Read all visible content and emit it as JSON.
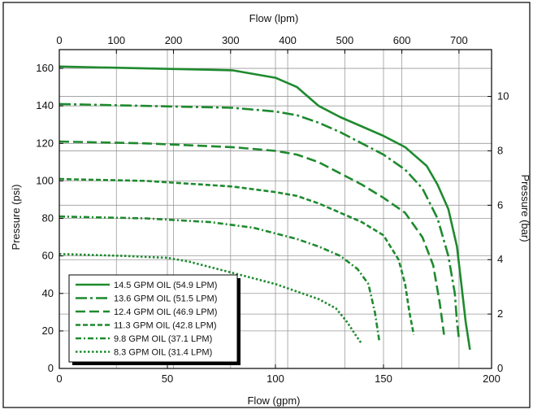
{
  "chart_data": {
    "type": "line",
    "title": "",
    "xlabel_bottom": "Flow (gpm)",
    "xlabel_top": "Flow (lpm)",
    "ylabel_left": "Pressure (psi)",
    "ylabel_right": "Pressure (bar)",
    "xlim": [
      0,
      200
    ],
    "ylim": [
      0,
      170
    ],
    "x_ticks": [
      "0",
      "50",
      "100",
      "150",
      "200"
    ],
    "y_ticks": [
      "0",
      "20",
      "40",
      "60",
      "80",
      "100",
      "120",
      "140",
      "160"
    ],
    "top_ticks": [
      "0",
      "100",
      "200",
      "300",
      "400",
      "500",
      "600",
      "700"
    ],
    "right_ticks": [
      "0",
      "2",
      "4",
      "6",
      "8",
      "10"
    ],
    "grid": true,
    "legend_position": "bottom-left",
    "line_color": "#1e8a2e",
    "series": [
      {
        "name": "14.5 GPM OIL (54.9 LPM)",
        "style": "solid",
        "points": [
          [
            0,
            161
          ],
          [
            40,
            160
          ],
          [
            80,
            159
          ],
          [
            100,
            155
          ],
          [
            110,
            150
          ],
          [
            120,
            140
          ],
          [
            130,
            134
          ],
          [
            140,
            129
          ],
          [
            150,
            124
          ],
          [
            160,
            118
          ],
          [
            170,
            108
          ],
          [
            175,
            98
          ],
          [
            180,
            85
          ],
          [
            184,
            65
          ],
          [
            186,
            45
          ],
          [
            188,
            25
          ],
          [
            190,
            10
          ]
        ]
      },
      {
        "name": "13.6 GPM OIL (51.5 LPM)",
        "style": "dashdot",
        "points": [
          [
            0,
            141
          ],
          [
            40,
            140
          ],
          [
            80,
            139
          ],
          [
            100,
            137
          ],
          [
            110,
            135
          ],
          [
            120,
            131
          ],
          [
            130,
            126
          ],
          [
            140,
            120
          ],
          [
            150,
            114
          ],
          [
            160,
            106
          ],
          [
            168,
            96
          ],
          [
            175,
            80
          ],
          [
            180,
            60
          ],
          [
            183,
            40
          ],
          [
            184,
            25
          ],
          [
            185,
            15
          ]
        ]
      },
      {
        "name": "12.4 GPM OIL (46.9 LPM)",
        "style": "dashed",
        "points": [
          [
            0,
            121
          ],
          [
            40,
            120
          ],
          [
            80,
            118
          ],
          [
            100,
            116
          ],
          [
            110,
            114
          ],
          [
            120,
            110
          ],
          [
            130,
            104
          ],
          [
            140,
            98
          ],
          [
            150,
            91
          ],
          [
            160,
            83
          ],
          [
            168,
            70
          ],
          [
            173,
            55
          ],
          [
            176,
            35
          ],
          [
            178,
            18
          ]
        ]
      },
      {
        "name": "11.3 GPM OIL (42.8 LPM)",
        "style": "shortdash",
        "points": [
          [
            0,
            101
          ],
          [
            40,
            100
          ],
          [
            80,
            97
          ],
          [
            100,
            94
          ],
          [
            110,
            92
          ],
          [
            120,
            88
          ],
          [
            130,
            83
          ],
          [
            140,
            78
          ],
          [
            150,
            71
          ],
          [
            157,
            58
          ],
          [
            160,
            45
          ],
          [
            162,
            30
          ],
          [
            164,
            18
          ]
        ]
      },
      {
        "name": "9.8 GPM OIL (37.1 LPM)",
        "style": "dashdotfine",
        "points": [
          [
            0,
            81
          ],
          [
            40,
            80
          ],
          [
            70,
            78
          ],
          [
            90,
            75
          ],
          [
            100,
            72
          ],
          [
            110,
            69
          ],
          [
            120,
            65
          ],
          [
            130,
            60
          ],
          [
            138,
            53
          ],
          [
            143,
            45
          ],
          [
            146,
            30
          ],
          [
            148,
            15
          ]
        ]
      },
      {
        "name": "8.3 GPM OIL (31.4 LPM)",
        "style": "dotted",
        "points": [
          [
            0,
            61
          ],
          [
            30,
            60
          ],
          [
            50,
            59
          ],
          [
            60,
            57
          ],
          [
            70,
            54
          ],
          [
            80,
            51
          ],
          [
            90,
            48
          ],
          [
            100,
            45
          ],
          [
            110,
            41
          ],
          [
            120,
            37
          ],
          [
            128,
            32
          ],
          [
            133,
            25
          ],
          [
            137,
            18
          ],
          [
            140,
            13
          ]
        ]
      }
    ]
  }
}
